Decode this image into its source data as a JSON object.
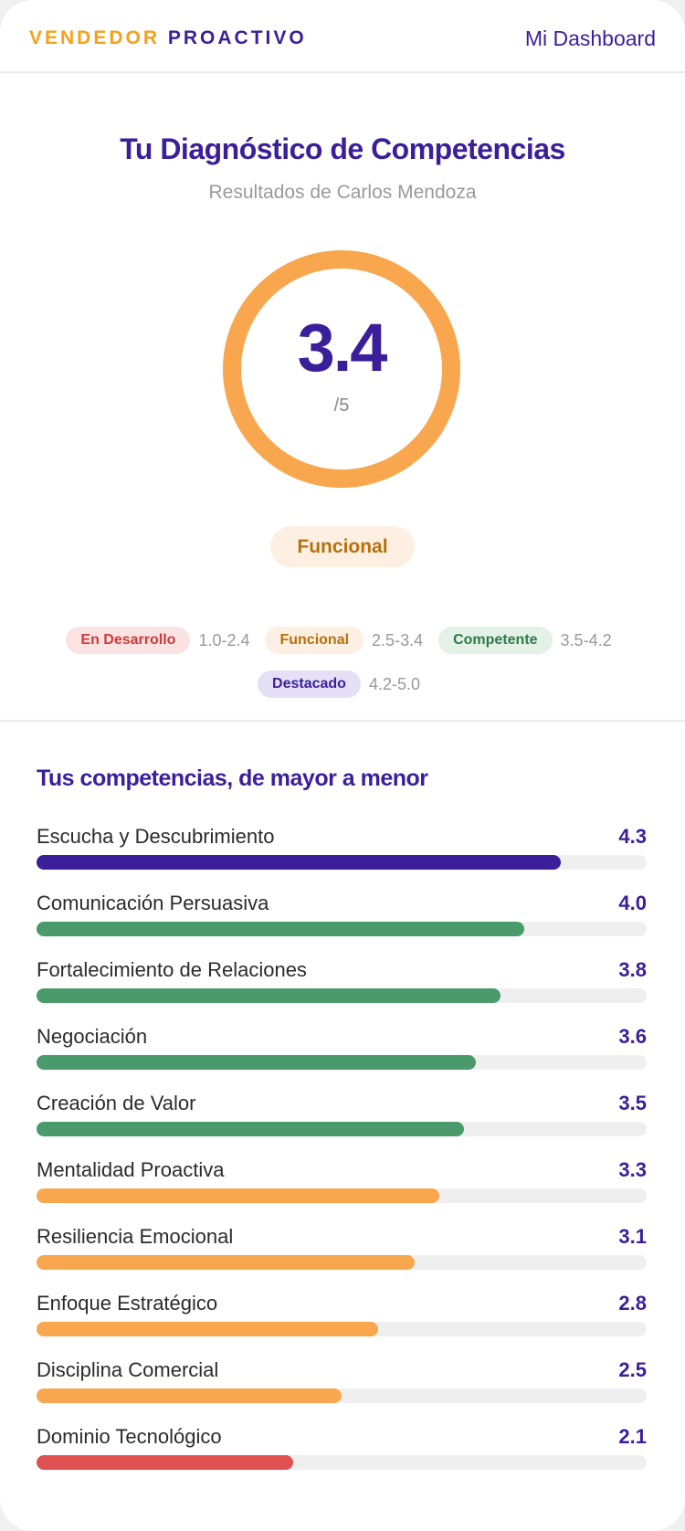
{
  "header": {
    "logo_part1": "VENDEDOR",
    "logo_part2": "PROACTIVO",
    "dashboard_link": "Mi Dashboard"
  },
  "main": {
    "title": "Tu Diagnóstico de Competencias",
    "subtitle": "Resultados de Carlos Mendoza",
    "score": "3.4",
    "score_max": "/5",
    "score_fraction": 0.68,
    "level": "Funcional",
    "ring_color": "#f9a74f"
  },
  "legend": [
    {
      "label": "En Desarrollo",
      "range": "1.0-2.4",
      "bg": "#fbe3e3",
      "color": "#d03a3a"
    },
    {
      "label": "Funcional",
      "range": "2.5-3.4",
      "bg": "#fdf0e2",
      "color": "#b8700a"
    },
    {
      "label": "Competente",
      "range": "3.5-4.2",
      "bg": "#e3f1e7",
      "color": "#2f7a4a"
    },
    {
      "label": "Destacado",
      "range": "4.2-5.0",
      "bg": "#e5e0f6",
      "color": "#3b1f9a"
    }
  ],
  "competencies": {
    "title": "Tus competencias, de mayor a menor",
    "max": 5,
    "items": [
      {
        "label": "Escucha y Descubrimiento",
        "value": "4.3",
        "color": "#3b1f9a"
      },
      {
        "label": "Comunicación Persuasiva",
        "value": "4.0",
        "color": "#4a9a6b"
      },
      {
        "label": "Fortalecimiento de Relaciones",
        "value": "3.8",
        "color": "#4a9a6b"
      },
      {
        "label": "Negociación",
        "value": "3.6",
        "color": "#4a9a6b"
      },
      {
        "label": "Creación de Valor",
        "value": "3.5",
        "color": "#4a9a6b"
      },
      {
        "label": "Mentalidad Proactiva",
        "value": "3.3",
        "color": "#f9a74f"
      },
      {
        "label": "Resiliencia Emocional",
        "value": "3.1",
        "color": "#f9a74f"
      },
      {
        "label": "Enfoque Estratégico",
        "value": "2.8",
        "color": "#f9a74f"
      },
      {
        "label": "Disciplina Comercial",
        "value": "2.5",
        "color": "#f9a74f"
      },
      {
        "label": "Dominio Tecnológico",
        "value": "2.1",
        "color": "#e05252"
      }
    ]
  }
}
